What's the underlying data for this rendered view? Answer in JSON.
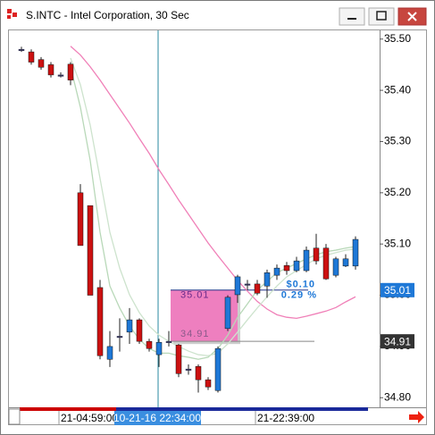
{
  "window": {
    "title": "S.INTC - Intel Corporation, 30 Sec"
  },
  "chart_data": {
    "type": "candlestick",
    "categories": [
      null,
      null,
      null,
      null,
      "21-04:59:00",
      null,
      null,
      null,
      null,
      null,
      null,
      null,
      null,
      null,
      "10-21-16 22:34:00",
      null,
      null,
      null,
      null,
      null,
      null,
      null,
      null,
      null,
      "21-22:39:00",
      null,
      null,
      null,
      null,
      null,
      null,
      null,
      null,
      null,
      null
    ],
    "crosshair_x": 14,
    "open": [
      35.48,
      35.475,
      35.46,
      35.45,
      35.43,
      35.451,
      35.2,
      35.175,
      35.015,
      34.875,
      34.92,
      34.928,
      34.952,
      34.91,
      34.884,
      34.91,
      34.903,
      34.856,
      34.861,
      34.835,
      34.814,
      34.935,
      35.001,
      35.022,
      35.022,
      35.018,
      35.039,
      35.058,
      35.048,
      35.048,
      35.092,
      35.092,
      35.039,
      35.057,
      35.057
    ],
    "high": [
      35.485,
      35.48,
      35.465,
      35.455,
      35.435,
      35.455,
      35.217,
      35.175,
      35.03,
      34.93,
      34.955,
      34.975,
      34.955,
      34.915,
      34.915,
      34.93,
      34.905,
      34.865,
      34.865,
      34.84,
      34.9,
      35.0,
      35.04,
      35.03,
      35.03,
      35.05,
      35.06,
      35.065,
      35.075,
      35.095,
      35.12,
      35.1,
      35.075,
      35.08,
      35.115
    ],
    "low": [
      35.475,
      35.45,
      35.44,
      35.425,
      35.425,
      35.41,
      35.097,
      35.0,
      34.875,
      34.86,
      34.89,
      34.905,
      34.905,
      34.89,
      34.86,
      34.9,
      34.84,
      34.845,
      34.81,
      34.815,
      34.81,
      34.93,
      34.985,
      35.01,
      35.0,
      34.995,
      35.03,
      35.04,
      35.045,
      35.045,
      35.06,
      35.03,
      35.035,
      35.055,
      35.05
    ],
    "close": [
      35.48,
      35.455,
      35.445,
      35.43,
      35.43,
      35.42,
      35.097,
      35.0,
      34.882,
      34.9,
      34.92,
      34.952,
      34.91,
      34.896,
      34.908,
      34.91,
      34.847,
      34.856,
      34.835,
      34.821,
      34.896,
      34.996,
      35.036,
      35.022,
      35.004,
      35.044,
      35.053,
      35.048,
      35.067,
      35.088,
      35.067,
      35.032,
      35.071,
      35.071,
      35.109
    ],
    "up_color": "#1e78d7",
    "down_color": "#cc1111",
    "overlays": [
      {
        "color": "#f080b8",
        "values": [
          null,
          null,
          null,
          null,
          null,
          35.486,
          35.469,
          35.446,
          35.42,
          35.392,
          35.364,
          35.336,
          35.306,
          35.277,
          35.245,
          35.216,
          35.186,
          35.158,
          35.13,
          35.102,
          35.077,
          35.053,
          35.029,
          35.008,
          34.988,
          34.973,
          34.962,
          34.957,
          34.955,
          34.959,
          34.964,
          34.969,
          34.976,
          34.987,
          34.997
        ]
      },
      {
        "color": "#b8d8b8",
        "values": [
          null,
          null,
          null,
          null,
          null,
          35.446,
          35.367,
          35.263,
          35.123,
          35.018,
          34.975,
          34.94,
          34.914,
          34.896,
          34.887,
          34.887,
          34.882,
          34.879,
          34.875,
          34.879,
          34.896,
          34.922,
          34.957,
          34.983,
          35.01,
          35.027,
          35.044,
          35.053,
          35.062,
          35.071,
          35.079,
          35.085,
          35.088,
          35.092,
          35.095
        ]
      },
      {
        "color": "#cde3cd",
        "values": [
          null,
          null,
          null,
          null,
          null,
          35.463,
          35.411,
          35.332,
          35.228,
          35.123,
          35.053,
          35.001,
          34.966,
          34.94,
          34.922,
          34.91,
          34.9,
          34.891,
          34.884,
          34.882,
          34.887,
          34.905,
          34.928,
          34.952,
          34.975,
          34.997,
          35.018,
          35.036,
          35.048,
          35.06,
          35.071,
          35.078,
          35.083,
          35.088,
          35.09
        ]
      }
    ],
    "ylim": [
      34.783,
      35.517
    ],
    "yticks": [
      {
        "value": 34.8,
        "label": "34.80"
      },
      {
        "value": 34.9,
        "label": "34.90"
      },
      {
        "value": 35.0,
        "label": "35.00"
      },
      {
        "value": 35.1,
        "label": "35.10"
      },
      {
        "value": 35.2,
        "label": "35.20"
      },
      {
        "value": 35.3,
        "label": "35.30"
      },
      {
        "value": 35.4,
        "label": "35.40"
      },
      {
        "value": 35.5,
        "label": "35.50"
      }
    ],
    "price_markers": [
      {
        "value": 35.01,
        "label": "35.01",
        "color": "#1e78d7"
      },
      {
        "value": 34.91,
        "label": "34.91",
        "color": "#333333"
      }
    ],
    "measure": {
      "top": {
        "value": 35.01,
        "label": "35.01"
      },
      "bottom": {
        "value": 34.91,
        "label": "34.91"
      },
      "change": "$0.10",
      "percent": "0.29 %"
    }
  }
}
